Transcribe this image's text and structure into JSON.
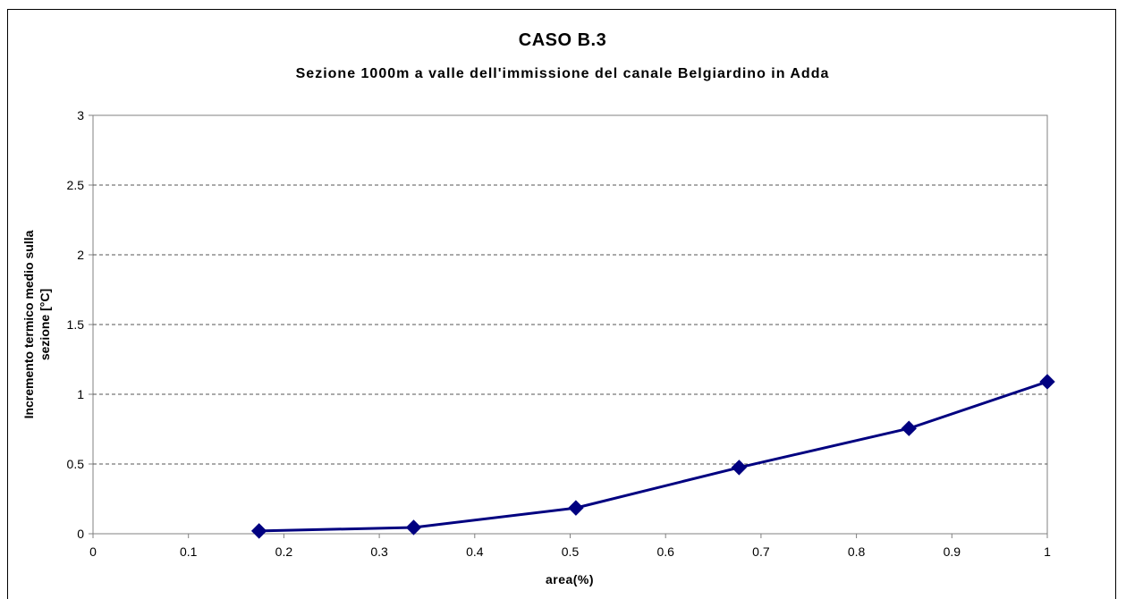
{
  "chart_data": {
    "type": "line",
    "title": "CASO B.3",
    "subtitle": "Sezione 1000m a valle dell'immissione del canale Belgiardino in Adda",
    "xlabel": "area(%)",
    "ylabel_lines": [
      "Incremento termico medio sulla",
      "sezione [°C]"
    ],
    "xlim": [
      0,
      1
    ],
    "ylim": [
      0,
      3
    ],
    "x_ticks": [
      0,
      0.1,
      0.2,
      0.3,
      0.4,
      0.5,
      0.6,
      0.7,
      0.8,
      0.9,
      1
    ],
    "x_tick_labels": [
      "0",
      "0.1",
      "0.2",
      "0.3",
      "0.4",
      "0.5",
      "0.6",
      "0.7",
      "0.8",
      "0.9",
      "1"
    ],
    "y_ticks": [
      0,
      0.5,
      1,
      1.5,
      2,
      2.5,
      3
    ],
    "y_tick_labels": [
      "0",
      "0.5",
      "1",
      "1.5",
      "2",
      "2.5",
      "3"
    ],
    "grid": "horizontal dashed",
    "legend": "none",
    "series": [
      {
        "color": "#000080",
        "marker": "diamond",
        "x": [
          0.174,
          0.336,
          0.506,
          0.677,
          0.855,
          1.0
        ],
        "y": [
          0.02,
          0.045,
          0.185,
          0.475,
          0.755,
          1.09
        ]
      }
    ]
  }
}
